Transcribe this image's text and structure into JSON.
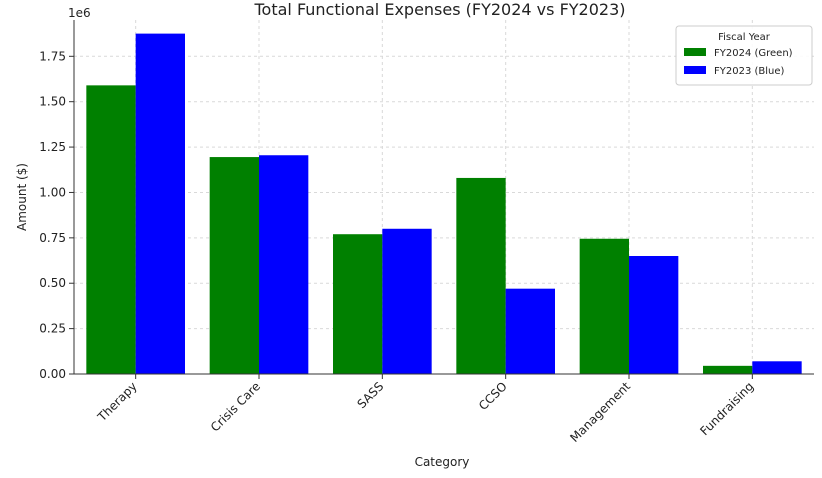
{
  "chart_data": {
    "type": "bar",
    "title": "Total Functional Expenses (FY2024 vs FY2023)",
    "xlabel": "Category",
    "ylabel": "Amount ($)",
    "y_scale_label": "1e6",
    "ylim": [
      0,
      1.95
    ],
    "yticks": [
      "0.00",
      "0.25",
      "0.50",
      "0.75",
      "1.00",
      "1.25",
      "1.50",
      "1.75"
    ],
    "grid": true,
    "legend_position": "top-right",
    "legend_title": "Fiscal Year",
    "categories": [
      "Therapy",
      "Crisis Care",
      "SASS",
      "CCSO",
      "Management",
      "Fundraising"
    ],
    "series": [
      {
        "name": "FY2024 (Green)",
        "color": "#008000",
        "values": [
          1.59,
          1.195,
          0.77,
          1.08,
          0.745,
          0.045
        ]
      },
      {
        "name": "FY2023 (Blue)",
        "color": "#0000ff",
        "values": [
          1.875,
          1.205,
          0.8,
          0.47,
          0.65,
          0.07
        ]
      }
    ]
  }
}
